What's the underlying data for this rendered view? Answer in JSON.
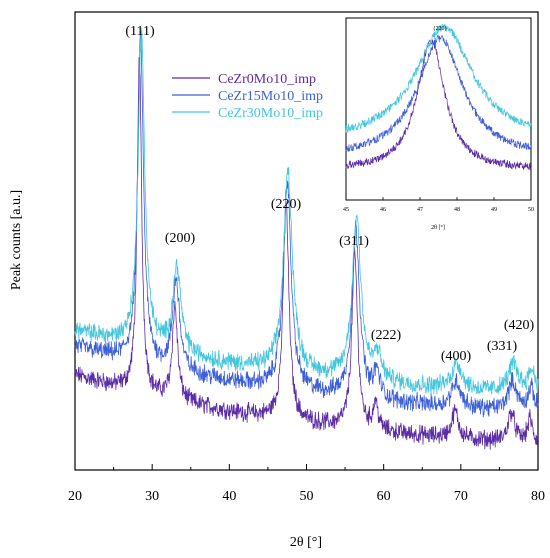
{
  "chart_data": {
    "type": "line",
    "xlabel": "2θ [°]",
    "ylabel": "Peak counts [a.u.]",
    "xlim": [
      20,
      80
    ],
    "xticks": [
      "20",
      "30",
      "40",
      "50",
      "60",
      "70",
      "80"
    ],
    "y_ticks_shown": false,
    "grid": false,
    "legend_position": "top-center",
    "series": [
      {
        "name": "CeZr0Mo10_imp",
        "color": "#5b2ca6",
        "offset": 0,
        "scale": 1.0
      },
      {
        "name": "CeZr15Mo10_imp",
        "color": "#3d5fd6",
        "offset": 0.9,
        "scale": 0.97
      },
      {
        "name": "CeZr30Mo10_imp",
        "color": "#44c6dc",
        "offset": 1.4,
        "scale": 0.93
      }
    ],
    "peaks": [
      {
        "label": "(111)",
        "x": 28.5
      },
      {
        "label": "(200)",
        "x": 33.1
      },
      {
        "label": "(220)",
        "x": 47.5
      },
      {
        "label": "(311)",
        "x": 56.4
      },
      {
        "label": "(222)",
        "x": 59.1
      },
      {
        "label": "(400)",
        "x": 69.4
      },
      {
        "label": "(331)",
        "x": 76.7
      },
      {
        "label": "(420)",
        "x": 79.1
      }
    ],
    "inset": {
      "title": "(220)",
      "xlabel": "2θ [°]",
      "xlim": [
        45,
        50
      ],
      "xticks": [
        "45",
        "46",
        "47",
        "48",
        "49",
        "50"
      ],
      "peak_centers": [
        47.3,
        47.55,
        47.65
      ]
    }
  }
}
